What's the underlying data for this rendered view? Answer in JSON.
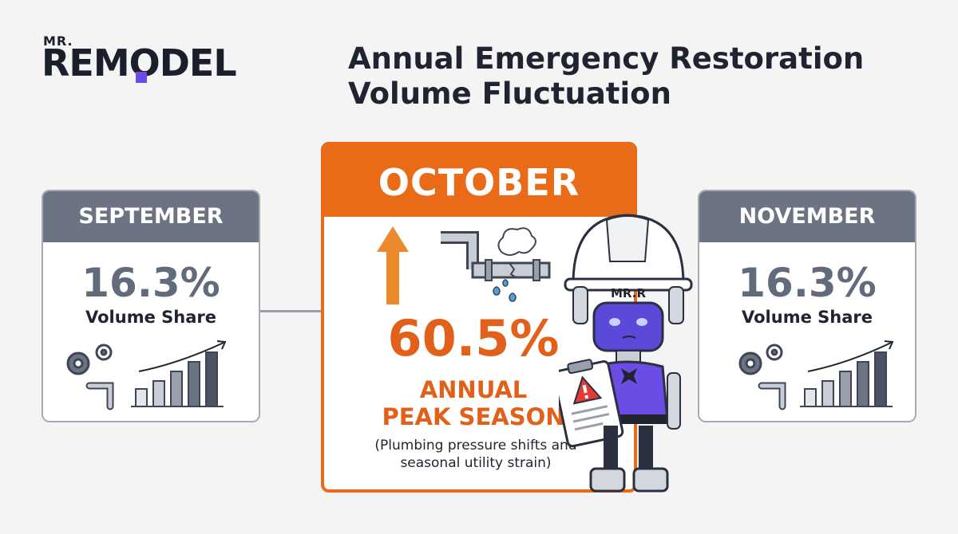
{
  "brand": {
    "small": "MR.",
    "big": "REMODEL",
    "helmet_label": "MR.R"
  },
  "title": "Annual Emergency Restoration Volume Fluctuation",
  "cards": {
    "september": {
      "month": "SEPTEMBER",
      "percent": "16.3%",
      "label": "Volume Share"
    },
    "october": {
      "month": "OCTOBER",
      "percent": "60.5%",
      "peak_line1": "ANNUAL",
      "peak_line2": "PEAK SEASON",
      "note": "(Plumbing pressure shifts and seasonal utility strain)"
    },
    "november": {
      "month": "NOVEMBER",
      "percent": "16.3%",
      "label": "Volume Share"
    }
  },
  "colors": {
    "accent": "#ea6b17",
    "slate": "#6c7484",
    "brand_purple": "#6b4de6"
  },
  "icons": [
    "gear-icon",
    "pipe-icon",
    "bar-chart-icon",
    "arrow-up-icon",
    "burst-pipe-icon",
    "warning-icon",
    "robot-mascot"
  ]
}
